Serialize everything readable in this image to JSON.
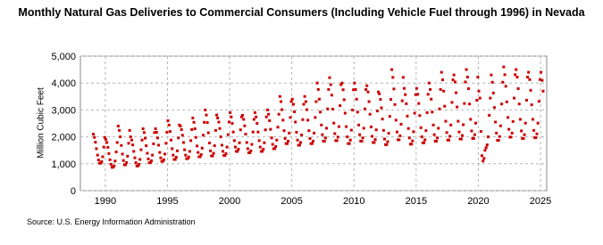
{
  "chart_data": {
    "type": "scatter",
    "title": "Monthly Natural Gas Deliveries to Commercial Consumers (Including Vehicle Fuel through 1996) in Nevada",
    "ylabel": "Million Cubic Feet",
    "source": "Source: U.S. Energy Information Administration",
    "xlim": [
      1988,
      2025.5
    ],
    "xticks": [
      1990,
      1995,
      2000,
      2005,
      2010,
      2015,
      2020,
      2025
    ],
    "ylim": [
      0,
      5000
    ],
    "yticks": [
      0,
      {
        "value": 1000,
        "label": "1,000"
      },
      {
        "value": 2000,
        "label": "2,000"
      },
      {
        "value": 3000,
        "label": "3,000"
      },
      {
        "value": 4000,
        "label": "4,000"
      },
      {
        "value": 5000,
        "label": "5,000"
      }
    ],
    "grid": true,
    "color": "#cc0000",
    "x": [
      1989.04,
      1989.13,
      1989.21,
      1989.29,
      1989.38,
      1989.46,
      1989.54,
      1989.63,
      1989.71,
      1989.79,
      1989.88,
      1989.96,
      1990.04,
      1990.13,
      1990.21,
      1990.29,
      1990.38,
      1990.46,
      1990.54,
      1990.63,
      1990.71,
      1990.79,
      1990.88,
      1990.96,
      1991.04,
      1991.13,
      1991.21,
      1991.29,
      1991.38,
      1991.46,
      1991.54,
      1991.63,
      1991.71,
      1991.79,
      1991.88,
      1991.96,
      1992.04,
      1992.13,
      1992.21,
      1992.29,
      1992.38,
      1992.46,
      1992.54,
      1992.63,
      1992.71,
      1992.79,
      1992.88,
      1992.96,
      1993.04,
      1993.13,
      1993.21,
      1993.29,
      1993.38,
      1993.46,
      1993.54,
      1993.63,
      1993.71,
      1993.79,
      1993.88,
      1993.96,
      1994.04,
      1994.13,
      1994.21,
      1994.29,
      1994.38,
      1994.46,
      1994.54,
      1994.63,
      1994.71,
      1994.79,
      1994.88,
      1994.96,
      1995.04,
      1995.13,
      1995.21,
      1995.29,
      1995.38,
      1995.46,
      1995.54,
      1995.63,
      1995.71,
      1995.79,
      1995.88,
      1995.96,
      1996.04,
      1996.13,
      1996.21,
      1996.29,
      1996.38,
      1996.46,
      1996.54,
      1996.63,
      1996.71,
      1996.79,
      1996.88,
      1996.96,
      1997.04,
      1997.13,
      1997.21,
      1997.29,
      1997.38,
      1997.46,
      1997.54,
      1997.63,
      1997.71,
      1997.79,
      1997.88,
      1997.96,
      1998.04,
      1998.13,
      1998.21,
      1998.29,
      1998.38,
      1998.46,
      1998.54,
      1998.63,
      1998.71,
      1998.79,
      1998.88,
      1998.96,
      1999.04,
      1999.13,
      1999.21,
      1999.29,
      1999.38,
      1999.46,
      1999.54,
      1999.63,
      1999.71,
      1999.79,
      1999.88,
      1999.96,
      2000.04,
      2000.13,
      2000.21,
      2000.29,
      2000.38,
      2000.46,
      2000.54,
      2000.63,
      2000.71,
      2000.79,
      2000.88,
      2000.96,
      2001.04,
      2001.13,
      2001.21,
      2001.29,
      2001.38,
      2001.46,
      2001.54,
      2001.63,
      2001.71,
      2001.79,
      2001.88,
      2001.96,
      2002.04,
      2002.13,
      2002.21,
      2002.29,
      2002.38,
      2002.46,
      2002.54,
      2002.63,
      2002.71,
      2002.79,
      2002.88,
      2002.96,
      2003.04,
      2003.13,
      2003.21,
      2003.29,
      2003.38,
      2003.46,
      2003.54,
      2003.63,
      2003.71,
      2003.79,
      2003.88,
      2003.96,
      2004.04,
      2004.13,
      2004.21,
      2004.29,
      2004.38,
      2004.46,
      2004.54,
      2004.63,
      2004.71,
      2004.79,
      2004.88,
      2004.96,
      2005.04,
      2005.13,
      2005.21,
      2005.29,
      2005.38,
      2005.46,
      2005.54,
      2005.63,
      2005.71,
      2005.79,
      2005.88,
      2005.96,
      2006.04,
      2006.13,
      2006.21,
      2006.29,
      2006.38,
      2006.46,
      2006.54,
      2006.63,
      2006.71,
      2006.79,
      2006.88,
      2006.96,
      2007.04,
      2007.13,
      2007.21,
      2007.29,
      2007.38,
      2007.46,
      2007.54,
      2007.63,
      2007.71,
      2007.79,
      2007.88,
      2007.96,
      2008.04,
      2008.13,
      2008.21,
      2008.29,
      2008.38,
      2008.46,
      2008.54,
      2008.63,
      2008.71,
      2008.79,
      2008.88,
      2008.96,
      2009.04,
      2009.13,
      2009.21,
      2009.29,
      2009.38,
      2009.46,
      2009.54,
      2009.63,
      2009.71,
      2009.79,
      2009.88,
      2009.96,
      2010.04,
      2010.13,
      2010.21,
      2010.29,
      2010.38,
      2010.46,
      2010.54,
      2010.63,
      2010.71,
      2010.79,
      2010.88,
      2010.96,
      2011.04,
      2011.13,
      2011.21,
      2011.29,
      2011.38,
      2011.46,
      2011.54,
      2011.63,
      2011.71,
      2011.79,
      2011.88,
      2011.96,
      2012.04,
      2012.13,
      2012.21,
      2012.29,
      2012.38,
      2012.46,
      2012.54,
      2012.63,
      2012.71,
      2012.79,
      2012.88,
      2012.96,
      2013.04,
      2013.13,
      2013.21,
      2013.29,
      2013.38,
      2013.46,
      2013.54,
      2013.63,
      2013.71,
      2013.79,
      2013.88,
      2013.96,
      2014.04,
      2014.13,
      2014.21,
      2014.29,
      2014.38,
      2014.46,
      2014.54,
      2014.63,
      2014.71,
      2014.79,
      2014.88,
      2014.96,
      2015.04,
      2015.13,
      2015.21,
      2015.29,
      2015.38,
      2015.46,
      2015.54,
      2015.63,
      2015.71,
      2015.79,
      2015.88,
      2015.96,
      2016.04,
      2016.13,
      2016.21,
      2016.29,
      2016.38,
      2016.46,
      2016.54,
      2016.63,
      2016.71,
      2016.79,
      2016.88,
      2016.96,
      2017.04,
      2017.13,
      2017.21,
      2017.29,
      2017.38,
      2017.46,
      2017.54,
      2017.63,
      2017.71,
      2017.79,
      2017.88,
      2017.96,
      2018.04,
      2018.13,
      2018.21,
      2018.29,
      2018.38,
      2018.46,
      2018.54,
      2018.63,
      2018.71,
      2018.79,
      2018.88,
      2018.96,
      2019.04,
      2019.13,
      2019.21,
      2019.29,
      2019.38,
      2019.46,
      2019.54,
      2019.63,
      2019.71,
      2019.79,
      2019.88,
      2019.96,
      2020.04,
      2020.13,
      2020.21,
      2020.29,
      2020.38,
      2020.46,
      2020.54,
      2020.63,
      2020.71,
      2020.79,
      2020.88,
      2020.96,
      2021.04,
      2021.13,
      2021.21,
      2021.29,
      2021.38,
      2021.46,
      2021.54,
      2021.63,
      2021.71,
      2021.79,
      2021.88,
      2021.96,
      2022.04,
      2022.13,
      2022.21,
      2022.29,
      2022.38,
      2022.46,
      2022.54,
      2022.63,
      2022.71,
      2022.79,
      2022.88,
      2022.96,
      2023.04,
      2023.13,
      2023.21,
      2023.29,
      2023.38,
      2023.46,
      2023.54,
      2023.63,
      2023.71,
      2023.79,
      2023.88,
      2023.96,
      2024.04,
      2024.13,
      2024.21,
      2024.29,
      2024.38,
      2024.46,
      2024.54,
      2024.63,
      2024.71,
      2024.79,
      2024.88,
      2024.96,
      2025.04,
      2025.13,
      2025.21
    ],
    "values": [
      2100,
      1980,
      1800,
      1560,
      1320,
      1140,
      1020,
      1020,
      1080,
      1260,
      1620,
      1980,
      1900,
      1790,
      1610,
      1380,
      1150,
      980,
      870,
      870,
      920,
      1100,
      1440,
      1790,
      2400,
      2240,
      2000,
      1680,
      1360,
      1120,
      960,
      960,
      1040,
      1280,
      1760,
      2240,
      2000,
      1880,
      1700,
      1460,
      1220,
      1040,
      920,
      920,
      980,
      1160,
      1520,
      1880,
      2300,
      2160,
      1950,
      1670,
      1390,
      1180,
      1040,
      1040,
      1110,
      1320,
      1740,
      2160,
      2300,
      2170,
      1960,
      1690,
      1420,
      1220,
      1090,
      1090,
      1150,
      1360,
      1760,
      2170,
      2600,
      2440,
      2200,
      1880,
      1560,
      1320,
      1160,
      1160,
      1240,
      1480,
      1960,
      2440,
      2400,
      2270,
      2060,
      1790,
      1520,
      1320,
      1190,
      1190,
      1250,
      1460,
      1860,
      2270,
      2700,
      2540,
      2300,
      1980,
      1660,
      1420,
      1260,
      1260,
      1340,
      1580,
      2060,
      2540,
      3000,
      2810,
      2530,
      2150,
      1770,
      1480,
      1290,
      1290,
      1390,
      1670,
      2240,
      2810,
      2700,
      2550,
      2310,
      2000,
      1690,
      1460,
      1310,
      1310,
      1380,
      1620,
      2080,
      2550,
      2900,
      2740,
      2500,
      2180,
      1860,
      1620,
      1460,
      1460,
      1540,
      1780,
      2260,
      2740,
      2800,
      2650,
      2410,
      2100,
      1790,
      1560,
      1410,
      1410,
      1480,
      1720,
      2180,
      2650,
      2900,
      2740,
      2500,
      2180,
      1860,
      1620,
      1460,
      1460,
      1540,
      1780,
      2260,
      2740,
      3000,
      2840,
      2600,
      2280,
      1960,
      1720,
      1560,
      1560,
      1640,
      1880,
      2360,
      2840,
      3500,
      3310,
      3010,
      2620,
      2230,
      1940,
      1750,
      1750,
      1840,
      2140,
      2720,
      3310,
      3400,
      3210,
      2930,
      2550,
      2170,
      1880,
      1690,
      1690,
      1790,
      2070,
      2640,
      3210,
      3500,
      3310,
      3010,
      2620,
      2230,
      1940,
      1750,
      1750,
      1840,
      2140,
      2720,
      3310,
      4000,
      3760,
      3400,
      2920,
      2440,
      2080,
      1840,
      1840,
      1960,
      2320,
      3040,
      3760,
      4200,
      3940,
      3550,
      3030,
      2510,
      2120,
      1860,
      1860,
      1990,
      2380,
      3160,
      3940,
      4000,
      3750,
      3380,
      2880,
      2380,
      2000,
      1750,
      1750,
      1880,
      2250,
      3000,
      3750,
      4000,
      3760,
      3400,
      2920,
      2440,
      2080,
      1840,
      1840,
      1960,
      2320,
      3040,
      3760,
      3900,
      3670,
      3310,
      2840,
      2370,
      2020,
      1790,
      1790,
      1900,
      2260,
      2960,
      3670,
      3600,
      3390,
      3080,
      2660,
      2240,
      1920,
      1710,
      1710,
      1820,
      2130,
      2760,
      3390,
      4500,
      4210,
      3780,
      3200,
      2620,
      2180,
      1890,
      1890,
      2040,
      2470,
      3340,
      4210,
      3800,
      3570,
      3230,
      2770,
      2310,
      1960,
      1730,
      1730,
      1850,
      2190,
      2880,
      3570,
      3800,
      3580,
      3240,
      2790,
      2340,
      2000,
      1780,
      1780,
      1890,
      2230,
      2900,
      3580,
      4000,
      3760,
      3400,
      2920,
      2440,
      2080,
      1840,
      1840,
      1960,
      2320,
      3040,
      3760,
      4400,
      4120,
      3700,
      3140,
      2580,
      2160,
      1880,
      1880,
      2020,
      2440,
      3280,
      4120,
      4300,
      4040,
      3640,
      3110,
      2580,
      2180,
      1920,
      1920,
      2050,
      2450,
      3240,
      4040,
      4500,
      4220,
      3790,
      3220,
      2650,
      2220,
      1940,
      1940,
      2080,
      2510,
      3360,
      4220,
      3700,
      3440,
      2200,
      1300,
      1100,
      1200,
      1500,
      1600,
      1700,
      2000,
      2800,
      3440,
      4300,
      4030,
      3630,
      3090,
      2550,
      2140,
      1870,
      1870,
      2010,
      2410,
      3220,
      4030,
      4600,
      4310,
      3880,
      3300,
      2720,
      2280,
      1990,
      1990,
      2140,
      2570,
      3440,
      4310,
      4500,
      4220,
      3790,
      3220,
      2650,
      2220,
      1940,
      1940,
      2080,
      2510,
      3360,
      4220,
      4400,
      4130,
      3730,
      3190,
      2650,
      2240,
      1970,
      1970,
      2110,
      2510,
      3320,
      4130,
      4400,
      4100,
      3700
    ]
  }
}
